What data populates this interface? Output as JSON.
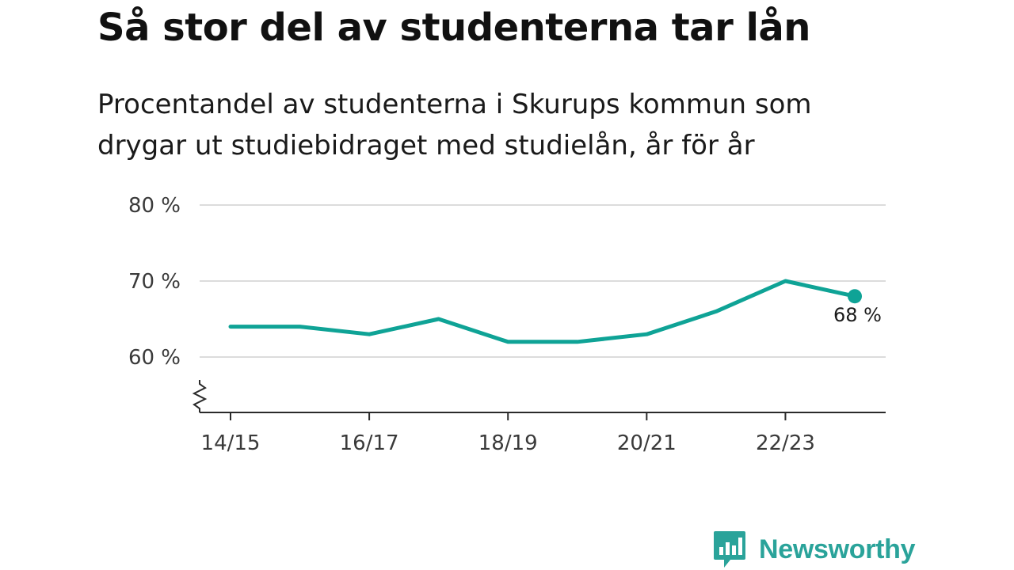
{
  "title": "Så stor del av studenterna tar lån",
  "subtitle": "Procentandel av studenterna i Skurups kommun som drygar ut studiebidraget med studielån, år för år",
  "brand": {
    "name": "Newsworthy",
    "logo_icon": "bar-chart-speech-bubble-icon",
    "color": "#2aa39a"
  },
  "chart_data": {
    "type": "line",
    "x": [
      "14/15",
      "15/16",
      "16/17",
      "17/18",
      "18/19",
      "19/20",
      "20/21",
      "21/22",
      "22/23",
      "23/24"
    ],
    "series": [
      {
        "values": [
          64,
          64,
          63,
          65,
          62,
          62,
          63,
          66,
          70,
          68
        ],
        "color": "#0fa396"
      }
    ],
    "x_tick_labels": [
      "14/15",
      "16/17",
      "18/19",
      "20/21",
      "22/23"
    ],
    "y_ticks": [
      60,
      70,
      80
    ],
    "y_tick_labels": [
      "60 %",
      "70 %",
      "80 %"
    ],
    "ylim": [
      53,
      80
    ],
    "y_axis_break": true,
    "grid": true,
    "end_label": "68 %",
    "xlabel": "",
    "ylabel": ""
  }
}
